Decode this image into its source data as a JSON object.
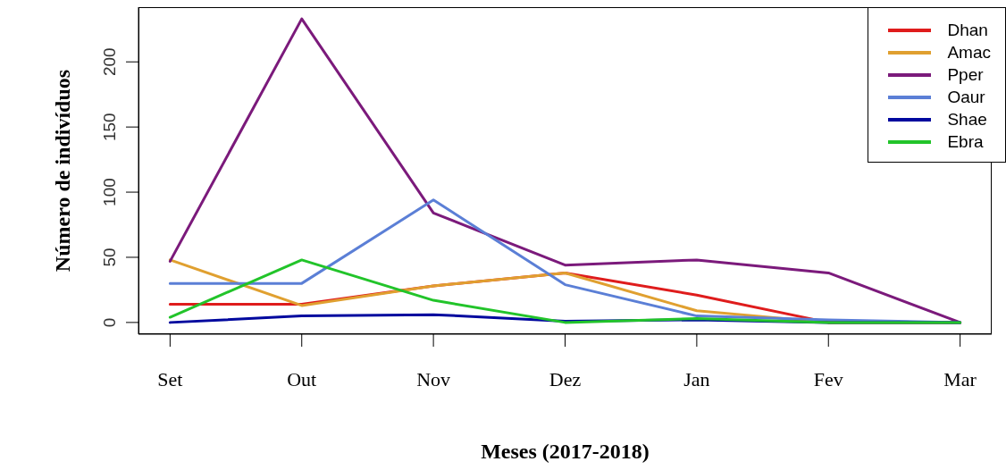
{
  "chart_data": {
    "type": "line",
    "xlabel": "Meses (2017-2018)",
    "ylabel": "Número de indivíduos",
    "categories": [
      "Set",
      "Out",
      "Nov",
      "Dez",
      "Jan",
      "Fev",
      "Mar"
    ],
    "ylim": [
      -9,
      242
    ],
    "yticks": [
      0,
      50,
      100,
      150,
      200
    ],
    "grid": false,
    "legend": "top right",
    "marker": "none",
    "line_style": "solid",
    "series": [
      {
        "name": "Dhan",
        "color": "#df1c1c",
        "values": [
          14,
          14,
          28,
          38,
          21,
          0,
          0
        ]
      },
      {
        "name": "Amac",
        "color": "#e0a030",
        "values": [
          48,
          13,
          28,
          38,
          9,
          0,
          0
        ]
      },
      {
        "name": "Pper",
        "color": "#7b1a7b",
        "values": [
          47,
          233,
          84,
          44,
          48,
          38,
          0
        ]
      },
      {
        "name": "Oaur",
        "color": "#5b7fd6",
        "values": [
          30,
          30,
          94,
          29,
          5,
          2,
          0
        ]
      },
      {
        "name": "Shae",
        "color": "#00089e",
        "values": [
          0,
          5,
          6,
          1,
          2,
          0,
          0
        ]
      },
      {
        "name": "Ebra",
        "color": "#22c42a",
        "values": [
          4,
          48,
          17,
          0,
          3,
          0,
          0
        ]
      }
    ]
  }
}
